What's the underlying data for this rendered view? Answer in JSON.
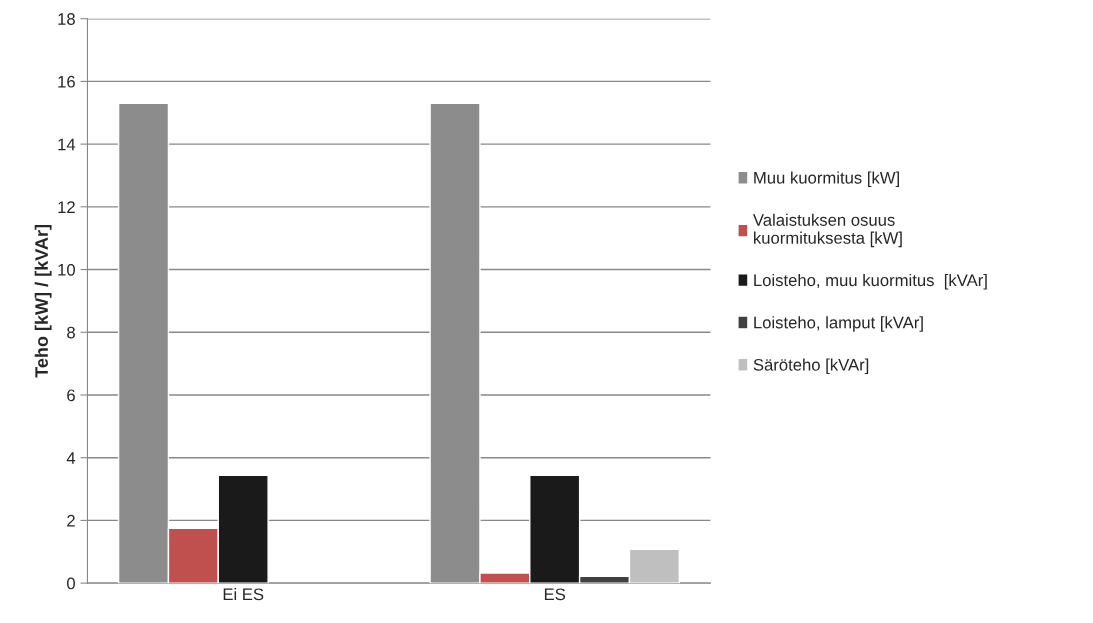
{
  "chart_data": {
    "type": "bar",
    "ylabel": "Teho [kW] / [kVAr]",
    "categories": [
      "Ei ES",
      "ES"
    ],
    "series": [
      {
        "name": "Muu kuormitus [kW]",
        "color": "#8c8c8c",
        "values": [
          15.3,
          15.3
        ]
      },
      {
        "name": "Valaistuksen osuus\nkuormituksesta [kW]",
        "color": "#c0504d",
        "values": [
          1.75,
          0.32
        ]
      },
      {
        "name": "Loisteho, muu kuormitus  [kVAr]",
        "color": "#1a1a1a",
        "values": [
          3.44,
          3.44
        ]
      },
      {
        "name": "Loisteho, lamput [kVAr]",
        "color": "#404040",
        "values": [
          null,
          0.22
        ]
      },
      {
        "name": "Säröteho [kVAr]",
        "color": "#bfbfbf",
        "values": [
          null,
          1.08
        ]
      }
    ],
    "ylim": [
      0,
      18
    ],
    "yticks": [
      0,
      2,
      4,
      6,
      8,
      10,
      12,
      14,
      16,
      18
    ],
    "grid": "y",
    "legend": "right"
  }
}
